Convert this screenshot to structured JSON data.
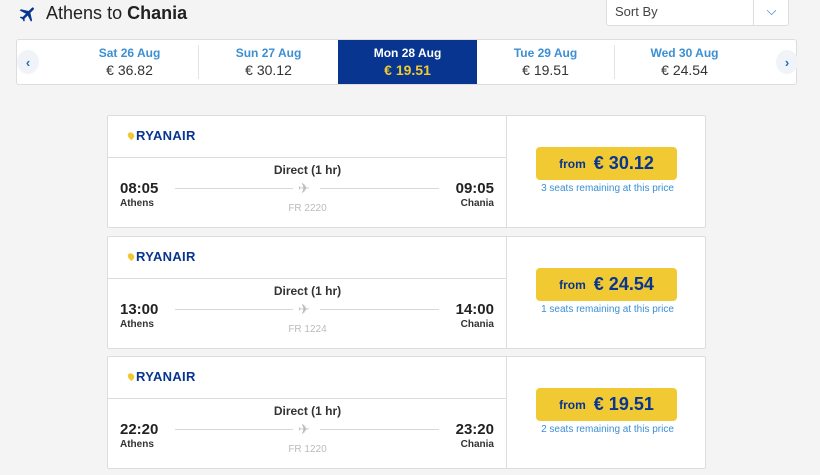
{
  "header": {
    "from": "Athens",
    "connector": "to",
    "to": "Chania",
    "sort_label": "Sort By"
  },
  "dates": [
    {
      "day": "Sat 26 Aug",
      "price": "€ 36.82"
    },
    {
      "day": "Sun 27 Aug",
      "price": "€ 30.12"
    },
    {
      "day": "Mon 28 Aug",
      "price": "€ 19.51",
      "selected": true
    },
    {
      "day": "Tue 29 Aug",
      "price": "€ 19.51"
    },
    {
      "day": "Wed 30 Aug",
      "price": "€ 24.54"
    }
  ],
  "flights": [
    {
      "airline": "RYANAIR",
      "type": "Direct (1 hr)",
      "dep_time": "08:05",
      "dep_city": "Athens",
      "arr_time": "09:05",
      "arr_city": "Chania",
      "flight_no": "FR 2220",
      "from_label": "from",
      "price": "€ 30.12",
      "seats": "3 seats remaining at this price"
    },
    {
      "airline": "RYANAIR",
      "type": "Direct (1 hr)",
      "dep_time": "13:00",
      "dep_city": "Athens",
      "arr_time": "14:00",
      "arr_city": "Chania",
      "flight_no": "FR 1224",
      "from_label": "from",
      "price": "€ 24.54",
      "seats": "1 seats remaining at this price"
    },
    {
      "airline": "RYANAIR",
      "type": "Direct (1 hr)",
      "dep_time": "22:20",
      "dep_city": "Athens",
      "arr_time": "23:20",
      "arr_city": "Chania",
      "flight_no": "FR 1220",
      "from_label": "from",
      "price": "€ 19.51",
      "seats": "2 seats remaining at this price"
    }
  ],
  "colors": {
    "brand": "#073590",
    "accent": "#f1c933",
    "link": "#3b8fd4"
  }
}
